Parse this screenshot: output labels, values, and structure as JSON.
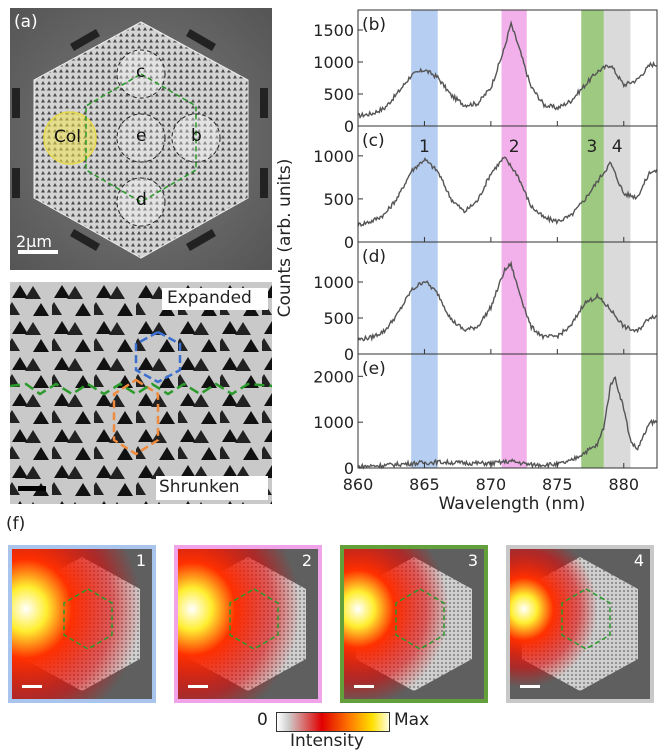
{
  "panel_a": {
    "label": "(a)",
    "regions": {
      "col": "Col",
      "b": "b",
      "c": "c",
      "d": "d",
      "e": "e"
    },
    "scalebar": "2µm"
  },
  "panel_lattice": {
    "top_label": "Expanded",
    "bottom_label": "Shrunken"
  },
  "spectra": {
    "ylabel": "Counts (arb. units)",
    "xlabel": "Wavelength (nm)",
    "x_ticks": [
      "860",
      "865",
      "870",
      "875",
      "880"
    ],
    "band_labels": [
      "1",
      "2",
      "3",
      "4"
    ],
    "colors": {
      "band1": "#a9c5ee",
      "band2": "#f0a3e8",
      "band3": "#8cc06a",
      "band4": "#d3d3d3",
      "trace": "#555555"
    },
    "subplots": [
      {
        "label": "(b)",
        "y_ticks": [
          "0",
          "500",
          "1000",
          "1500"
        ]
      },
      {
        "label": "(c)",
        "y_ticks": [
          "0",
          "500",
          "1000"
        ]
      },
      {
        "label": "(d)",
        "y_ticks": [
          "0",
          "500",
          "1000"
        ]
      },
      {
        "label": "(e)",
        "y_ticks": [
          "0",
          "1000",
          "2000"
        ]
      }
    ]
  },
  "panel_f": {
    "label": "(f)",
    "maps": [
      {
        "number": "1",
        "border": "#a9c5ee"
      },
      {
        "number": "2",
        "border": "#f0a3e8"
      },
      {
        "number": "3",
        "border": "#63a03c"
      },
      {
        "number": "4",
        "border": "#c8c8c8"
      }
    ],
    "colorbar": {
      "min": "0",
      "max": "Max",
      "label": "Intensity"
    }
  },
  "chart_data": [
    {
      "type": "line",
      "id": "b",
      "x": [
        860,
        861,
        862,
        863,
        864,
        865,
        866,
        867,
        868,
        869,
        870,
        871,
        871.5,
        872,
        873,
        874,
        875,
        876,
        877,
        878,
        879,
        880,
        881,
        882
      ],
      "values": [
        160,
        190,
        280,
        520,
        790,
        880,
        760,
        480,
        330,
        350,
        600,
        1200,
        1600,
        1300,
        620,
        330,
        280,
        390,
        620,
        850,
        960,
        640,
        720,
        960
      ],
      "ylim": [
        0,
        1750
      ],
      "xlim": [
        860,
        882.5
      ]
    },
    {
      "type": "line",
      "id": "c",
      "x": [
        860,
        861,
        862,
        863,
        864,
        865,
        866,
        867,
        868,
        869,
        870,
        871,
        872,
        873,
        874,
        875,
        876,
        877,
        878,
        879,
        880,
        881,
        882
      ],
      "values": [
        200,
        240,
        320,
        520,
        820,
        960,
        820,
        500,
        350,
        480,
        800,
        980,
        780,
        420,
        280,
        240,
        300,
        480,
        700,
        920,
        560,
        520,
        820
      ],
      "ylim": [
        0,
        1300
      ],
      "xlim": [
        860,
        882.5
      ]
    },
    {
      "type": "line",
      "id": "d",
      "x": [
        860,
        861,
        862,
        863,
        864,
        865,
        866,
        867,
        868,
        869,
        870,
        871,
        871.5,
        872,
        873,
        874,
        875,
        876,
        877,
        878,
        879,
        880,
        881,
        882
      ],
      "values": [
        200,
        230,
        320,
        560,
        880,
        1020,
        840,
        480,
        330,
        380,
        650,
        1150,
        1250,
        940,
        380,
        230,
        250,
        380,
        700,
        800,
        620,
        380,
        310,
        520
      ],
      "ylim": [
        0,
        1500
      ],
      "xlim": [
        860,
        882.5
      ]
    },
    {
      "type": "line",
      "id": "e",
      "x": [
        860,
        862,
        864,
        866,
        868,
        870,
        871.5,
        873,
        875,
        876,
        877,
        878,
        878.5,
        879,
        879.3,
        880,
        880.5,
        881,
        882
      ],
      "values": [
        30,
        60,
        100,
        130,
        110,
        100,
        150,
        70,
        80,
        150,
        330,
        500,
        900,
        1800,
        2000,
        1300,
        600,
        400,
        1000
      ],
      "ylim": [
        0,
        2400
      ],
      "xlim": [
        860,
        882.5
      ]
    }
  ]
}
